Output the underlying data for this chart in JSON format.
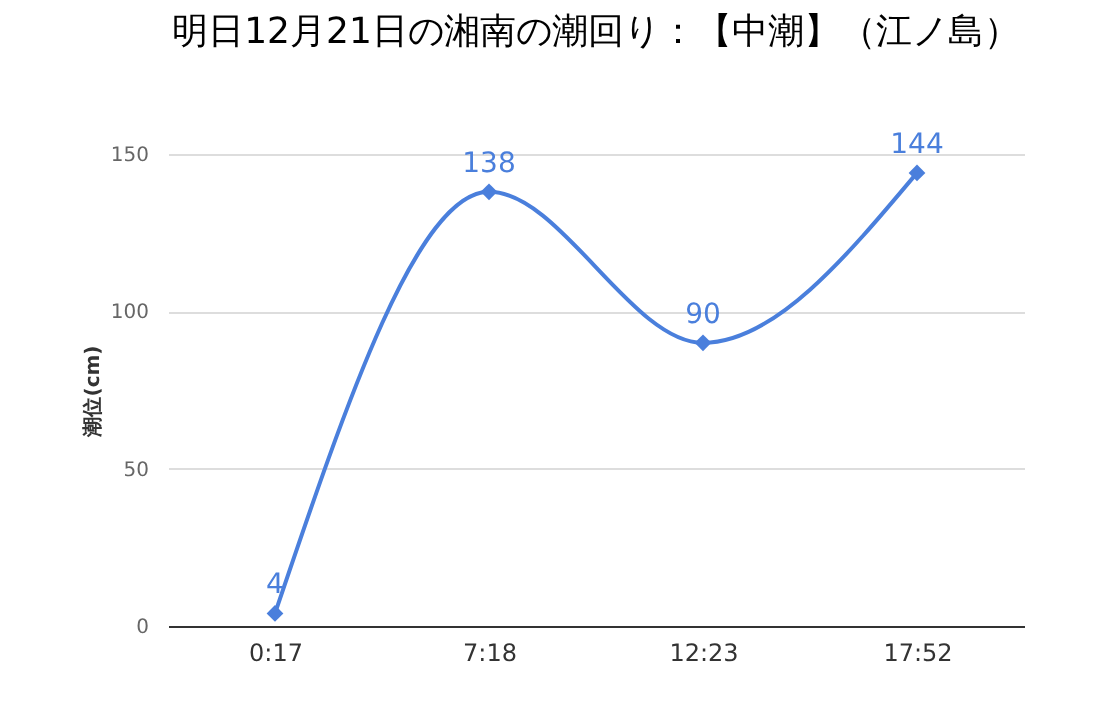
{
  "chart_data": {
    "type": "line",
    "title": "明日12月21日の湘南の潮回り：【中潮】（江ノ島）",
    "ylabel": "潮位(cm)",
    "categories": [
      "0:17",
      "7:18",
      "12:23",
      "17:52"
    ],
    "series": [
      {
        "color": "#4a7fdc",
        "values": [
          4,
          138,
          90,
          144
        ]
      }
    ],
    "ylim": [
      0,
      150
    ],
    "yticks": [
      0,
      50,
      100,
      150
    ],
    "grid": "y",
    "marker": "diamond",
    "line_style": "solid",
    "data_labels": true
  }
}
